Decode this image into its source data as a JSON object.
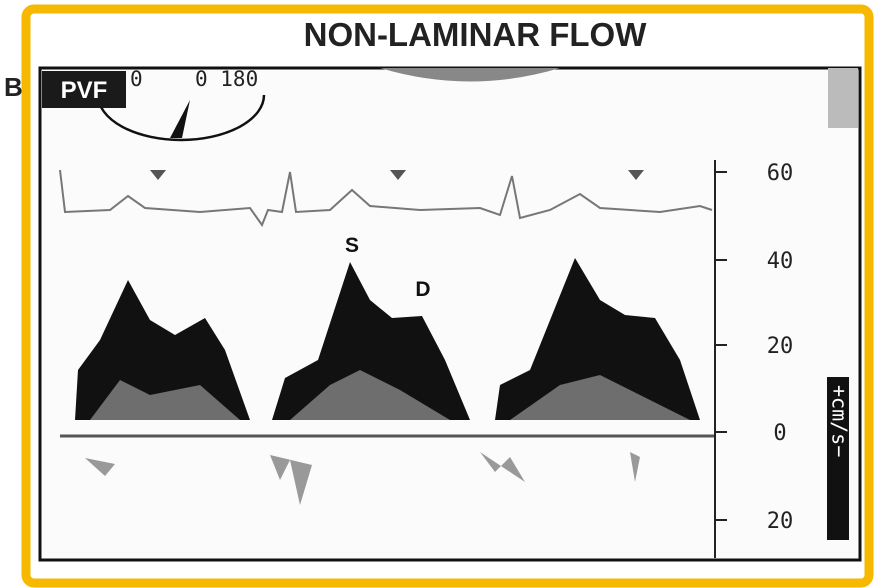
{
  "title": "NON-LAMINAR FLOW",
  "panel_label": "B",
  "image": {
    "tag": "PVF",
    "dial_text": "0 180",
    "scale_text": "0",
    "peaks": [
      "S",
      "D"
    ],
    "scale_ticks": [
      "60",
      "40",
      "20",
      "0",
      "20"
    ],
    "unit": "+cm/s−"
  }
}
